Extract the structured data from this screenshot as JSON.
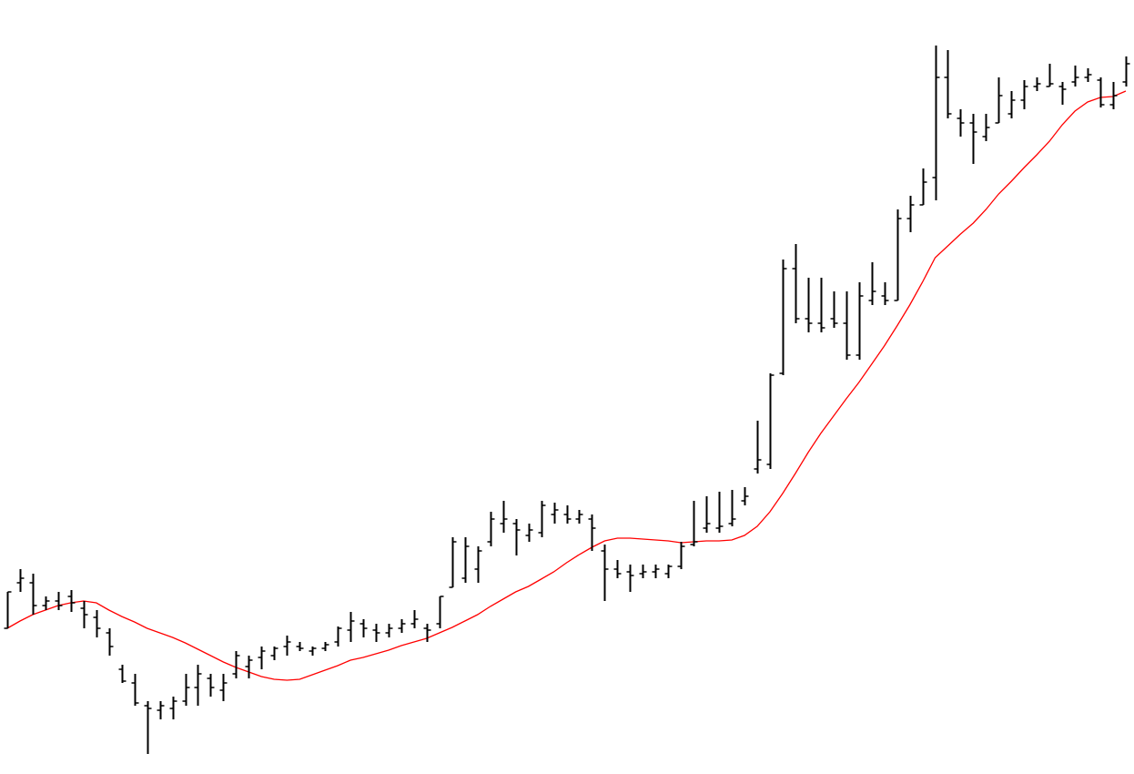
{
  "chart_data": {
    "type": "ohlc",
    "color": "#000000",
    "ylim": [
      0,
      850
    ],
    "open": [
      160,
      210,
      210,
      185,
      190,
      195,
      182,
      172,
      155,
      115,
      100,
      75,
      70,
      72,
      80,
      95,
      105,
      92,
      110,
      118,
      128,
      130,
      140,
      140,
      135,
      138,
      145,
      158,
      165,
      158,
      155,
      160,
      165,
      160,
      165,
      205,
      215,
      225,
      255,
      275,
      275,
      262,
      265,
      285,
      285,
      280,
      280,
      245,
      225,
      222,
      220,
      222,
      220,
      228,
      252,
      270,
      270,
      275,
      300,
      335,
      340,
      440,
      555,
      500,
      495,
      500,
      495,
      460,
      520,
      525,
      520,
      610,
      625,
      655,
      765,
      720,
      715,
      700,
      715,
      725,
      740,
      755,
      755,
      755,
      760,
      765,
      762,
      735,
      760
    ],
    "high": [
      200,
      225,
      220,
      195,
      200,
      202,
      190,
      180,
      160,
      120,
      110,
      80,
      80,
      85,
      110,
      120,
      110,
      110,
      135,
      130,
      140,
      140,
      152,
      145,
      140,
      145,
      162,
      178,
      170,
      165,
      165,
      170,
      180,
      165,
      195,
      260,
      260,
      250,
      288,
      300,
      280,
      275,
      300,
      298,
      295,
      290,
      285,
      252,
      235,
      230,
      230,
      230,
      230,
      255,
      300,
      305,
      310,
      312,
      315,
      388,
      440,
      565,
      582,
      545,
      545,
      530,
      530,
      540,
      562,
      540,
      620,
      635,
      665,
      800,
      795,
      730,
      725,
      725,
      765,
      750,
      762,
      765,
      780,
      760,
      778,
      775,
      765,
      760,
      788
    ],
    "low": [
      160,
      200,
      175,
      180,
      180,
      178,
      160,
      150,
      130,
      100,
      75,
      22,
      60,
      60,
      75,
      75,
      85,
      80,
      105,
      105,
      115,
      125,
      130,
      135,
      130,
      135,
      140,
      145,
      150,
      145,
      150,
      155,
      160,
      145,
      160,
      205,
      210,
      210,
      250,
      265,
      240,
      255,
      260,
      275,
      275,
      275,
      245,
      190,
      215,
      200,
      215,
      215,
      215,
      225,
      250,
      265,
      265,
      272,
      295,
      330,
      335,
      438,
      495,
      485,
      485,
      490,
      455,
      455,
      515,
      515,
      520,
      595,
      625,
      630,
      720,
      700,
      670,
      695,
      715,
      720,
      730,
      750,
      755,
      735,
      755,
      760,
      732,
      730,
      755
    ],
    "close": [
      200,
      215,
      185,
      190,
      185,
      188,
      175,
      160,
      140,
      102,
      78,
      72,
      75,
      80,
      95,
      110,
      95,
      100,
      130,
      125,
      135,
      138,
      145,
      138,
      138,
      142,
      160,
      168,
      160,
      155,
      160,
      165,
      170,
      158,
      195,
      255,
      250,
      245,
      280,
      280,
      268,
      268,
      295,
      290,
      280,
      285,
      270,
      225,
      220,
      218,
      222,
      225,
      228,
      250,
      255,
      275,
      272,
      280,
      305,
      345,
      438,
      555,
      500,
      495,
      490,
      495,
      460,
      525,
      530,
      520,
      610,
      625,
      650,
      765,
      725,
      715,
      705,
      710,
      745,
      740,
      755,
      758,
      758,
      752,
      765,
      768,
      735,
      745,
      780
    ],
    "ma": {
      "color": "#ff0000",
      "values": [
        160,
        168,
        175,
        180,
        185,
        188,
        190,
        188,
        180,
        173,
        167,
        160,
        155,
        150,
        144,
        137,
        130,
        123,
        117,
        112,
        107,
        104,
        103,
        104,
        109,
        114,
        119,
        125,
        128,
        132,
        136,
        141,
        145,
        149,
        155,
        161,
        168,
        175,
        184,
        192,
        200,
        206,
        214,
        222,
        232,
        241,
        249,
        256,
        259,
        259,
        258,
        257,
        256,
        254,
        255,
        256,
        256,
        257,
        262,
        272,
        288,
        308,
        330,
        353,
        374,
        393,
        412,
        430,
        450,
        470,
        492,
        515,
        540,
        567,
        580,
        593,
        605,
        620,
        637,
        651,
        666,
        680,
        695,
        713,
        728,
        738,
        743,
        744,
        750
      ]
    }
  }
}
